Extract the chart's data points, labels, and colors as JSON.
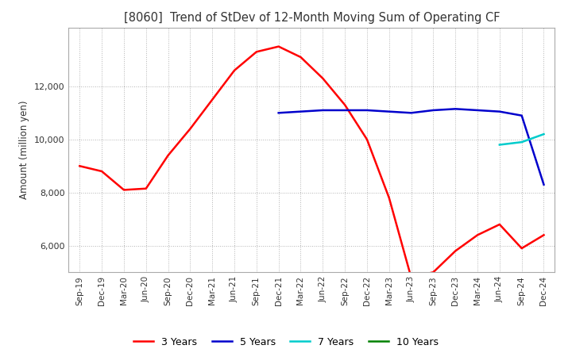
{
  "title": "[8060]  Trend of StDev of 12-Month Moving Sum of Operating CF",
  "ylabel": "Amount (million yen)",
  "background_color": "#ffffff",
  "grid_color": "#aaaaaa",
  "ylim": [
    5000,
    14200
  ],
  "yticks": [
    6000,
    8000,
    10000,
    12000
  ],
  "legend_labels": [
    "3 Years",
    "5 Years",
    "7 Years",
    "10 Years"
  ],
  "legend_colors": [
    "#ff0000",
    "#0000cc",
    "#00cccc",
    "#008000"
  ],
  "x_labels": [
    "Sep-19",
    "Dec-19",
    "Mar-20",
    "Jun-20",
    "Sep-20",
    "Dec-20",
    "Mar-21",
    "Jun-21",
    "Sep-21",
    "Dec-21",
    "Mar-22",
    "Jun-22",
    "Sep-22",
    "Dec-22",
    "Mar-23",
    "Jun-23",
    "Sep-23",
    "Dec-23",
    "Mar-24",
    "Jun-24",
    "Sep-24",
    "Dec-24"
  ],
  "series_3y": [
    9000,
    8800,
    8100,
    8150,
    9400,
    10400,
    11500,
    12600,
    13300,
    13500,
    13100,
    12300,
    11300,
    10000,
    7800,
    4800,
    5000,
    5800,
    6400,
    6800,
    5900,
    6400
  ],
  "series_5y": [
    null,
    null,
    null,
    null,
    null,
    null,
    null,
    null,
    null,
    11000,
    11050,
    11100,
    11100,
    11100,
    11050,
    11000,
    11100,
    11150,
    11100,
    11050,
    10900,
    8300
  ],
  "series_7y": [
    null,
    null,
    null,
    null,
    null,
    null,
    null,
    null,
    null,
    null,
    null,
    null,
    null,
    null,
    null,
    null,
    null,
    null,
    null,
    9800,
    9900,
    10200
  ],
  "series_10y": []
}
